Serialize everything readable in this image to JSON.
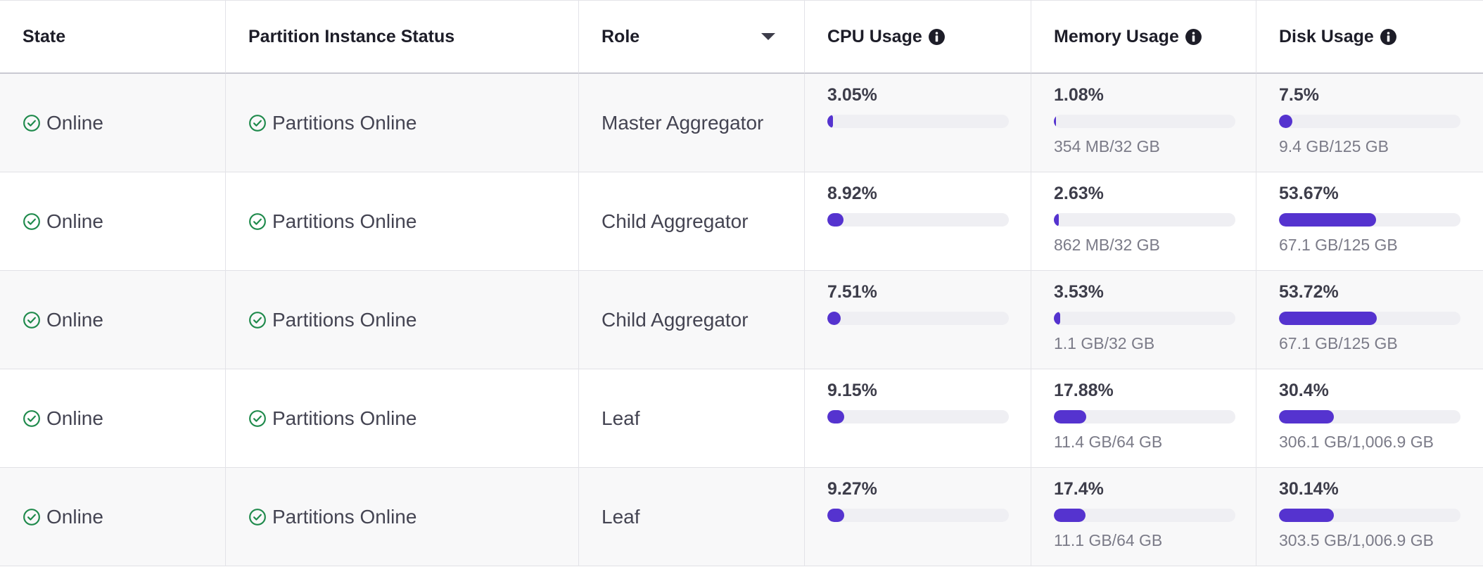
{
  "table": {
    "columns": [
      "State",
      "Partition Instance Status",
      "Role",
      "CPU Usage",
      "Memory Usage",
      "Disk Usage"
    ],
    "rows": [
      {
        "state": "Online",
        "partition_status": "Partitions Online",
        "role": "Master Aggregator",
        "cpu": {
          "percent": 3.05,
          "label": "3.05%"
        },
        "memory": {
          "percent": 1.08,
          "label": "1.08%",
          "detail": "354 MB/32 GB"
        },
        "disk": {
          "percent": 7.5,
          "label": "7.5%",
          "detail": "9.4 GB/125 GB"
        }
      },
      {
        "state": "Online",
        "partition_status": "Partitions Online",
        "role": "Child Aggregator",
        "cpu": {
          "percent": 8.92,
          "label": "8.92%"
        },
        "memory": {
          "percent": 2.63,
          "label": "2.63%",
          "detail": "862 MB/32 GB"
        },
        "disk": {
          "percent": 53.67,
          "label": "53.67%",
          "detail": "67.1 GB/125 GB"
        }
      },
      {
        "state": "Online",
        "partition_status": "Partitions Online",
        "role": "Child Aggregator",
        "cpu": {
          "percent": 7.51,
          "label": "7.51%"
        },
        "memory": {
          "percent": 3.53,
          "label": "3.53%",
          "detail": "1.1 GB/32 GB"
        },
        "disk": {
          "percent": 53.72,
          "label": "53.72%",
          "detail": "67.1 GB/125 GB"
        }
      },
      {
        "state": "Online",
        "partition_status": "Partitions Online",
        "role": "Leaf",
        "cpu": {
          "percent": 9.15,
          "label": "9.15%"
        },
        "memory": {
          "percent": 17.88,
          "label": "17.88%",
          "detail": "11.4 GB/64 GB"
        },
        "disk": {
          "percent": 30.4,
          "label": "30.4%",
          "detail": "306.1 GB/1,006.9 GB"
        }
      },
      {
        "state": "Online",
        "partition_status": "Partitions Online",
        "role": "Leaf",
        "cpu": {
          "percent": 9.27,
          "label": "9.27%"
        },
        "memory": {
          "percent": 17.4,
          "label": "17.4%",
          "detail": "11.1 GB/64 GB"
        },
        "disk": {
          "percent": 30.14,
          "label": "30.14%",
          "detail": "303.5 GB/1,006.9 GB"
        }
      }
    ]
  }
}
